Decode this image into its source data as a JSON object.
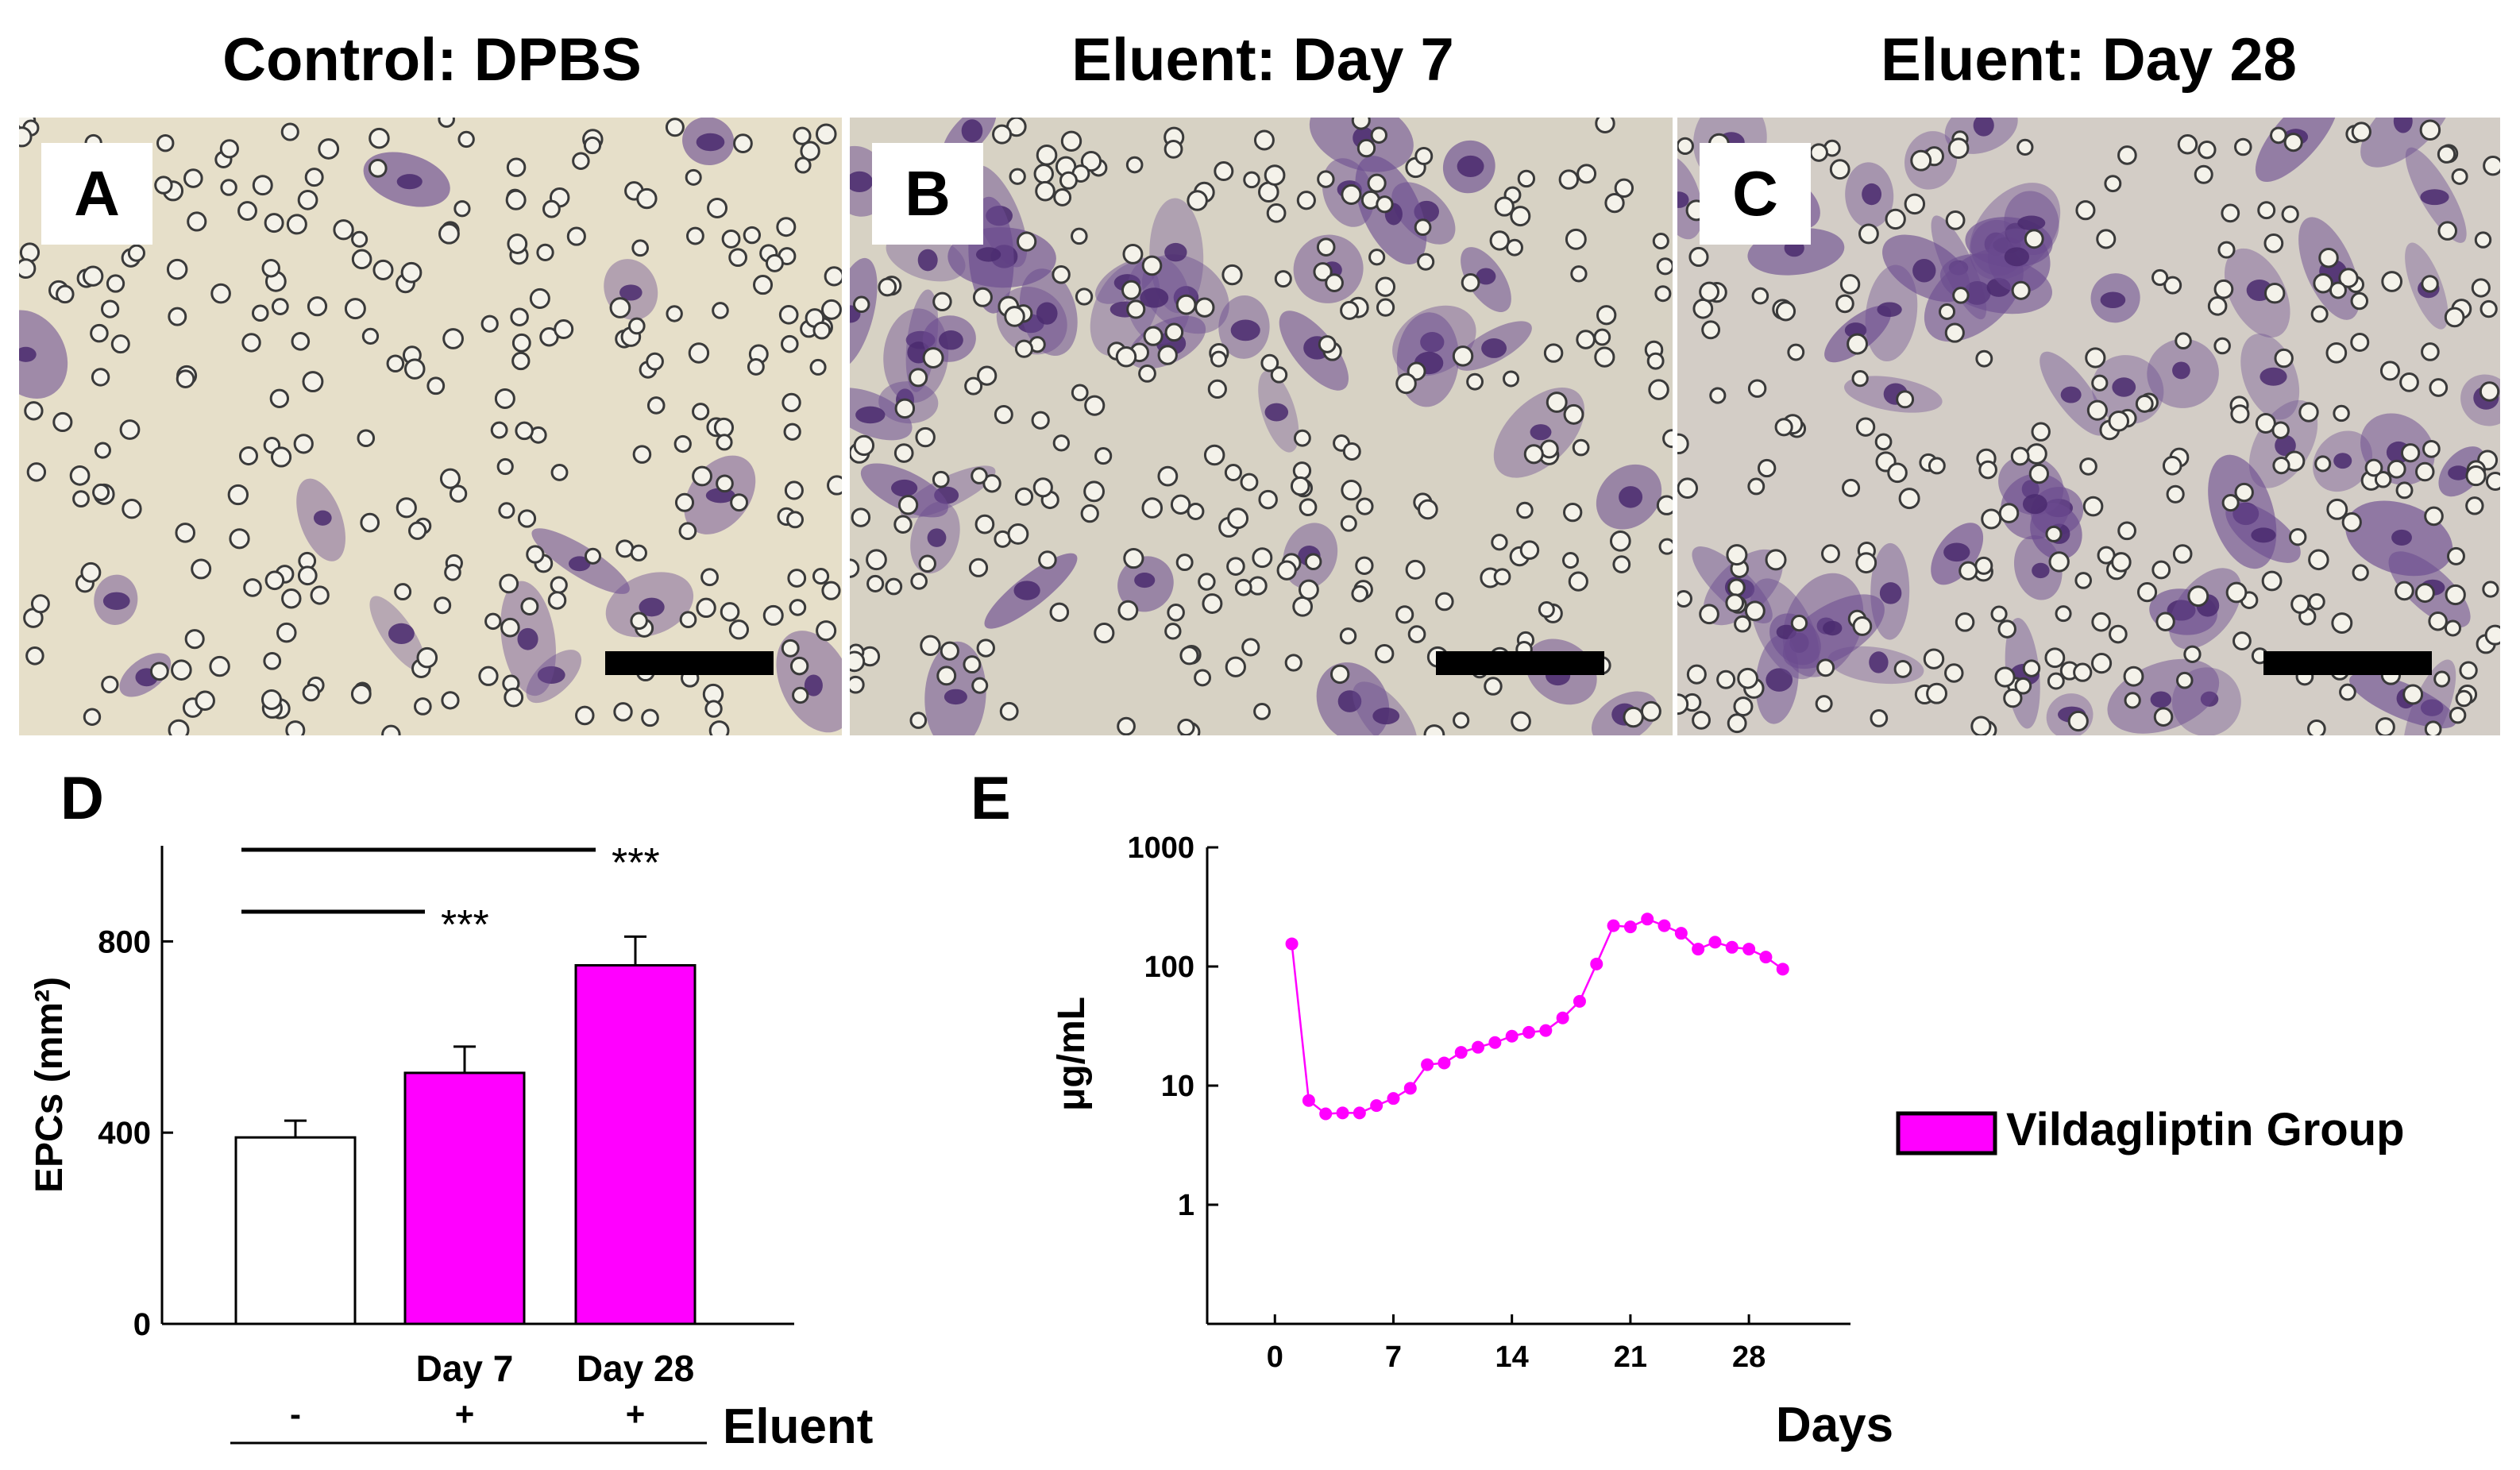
{
  "panels": {
    "a": {
      "title": "Control: DPBS",
      "letter": "A"
    },
    "b": {
      "title": "Eluent:  Day 7",
      "letter": "B"
    },
    "c": {
      "title": "Eluent: Day 28",
      "letter": "C"
    }
  },
  "panel_d": {
    "letter": "D"
  },
  "panel_e": {
    "letter": "E"
  },
  "colors": {
    "magenta": "#ff00ff",
    "stain": "#6a4a8f",
    "nucleus": "#4a2a6e"
  },
  "chart_data": [
    {
      "type": "bar",
      "ylabel": "EPCs (mm²)",
      "yticks": [
        "0",
        "400",
        "800"
      ],
      "ylim": [
        0,
        1000
      ],
      "categories": [
        "",
        "Day 7",
        "Day 28"
      ],
      "values": [
        390,
        525,
        750
      ],
      "errors": [
        35,
        55,
        60
      ],
      "bar_colors": [
        "#ffffff",
        "#ff00ff",
        "#ff00ff"
      ],
      "eluent_signs": [
        "-",
        "+",
        "+"
      ],
      "eluent_label": "Eluent",
      "significance": [
        {
          "from": 0,
          "to": 2,
          "label": "***"
        },
        {
          "from": 0,
          "to": 1,
          "label": "***"
        }
      ]
    },
    {
      "type": "line",
      "ylabel": "μg/mL",
      "xlabel": "Days",
      "yscale": "log",
      "ylim": [
        0.1,
        1000
      ],
      "xlim": [
        -4,
        34
      ],
      "xticks": [
        "0",
        "7",
        "14",
        "21",
        "28"
      ],
      "yticks": [
        "1",
        "10",
        "100",
        "1000"
      ],
      "legend": {
        "label": "Vildagliptin Group",
        "position": "right"
      },
      "series": [
        {
          "color": "#ff00ff",
          "x": [
            1,
            2,
            3,
            4,
            5,
            6,
            7,
            8,
            9,
            10,
            11,
            12,
            13,
            14,
            15,
            16,
            17,
            18,
            19,
            20,
            21,
            22,
            23,
            24,
            25,
            26,
            27,
            28,
            29,
            30
          ],
          "y": [
            155,
            7.5,
            5.8,
            5.9,
            5.9,
            6.8,
            7.8,
            9.5,
            15,
            15.5,
            19,
            21,
            23,
            26,
            28,
            29,
            37,
            51,
            105,
            220,
            215,
            250,
            220,
            190,
            140,
            160,
            145,
            140,
            120,
            95
          ]
        }
      ]
    }
  ]
}
